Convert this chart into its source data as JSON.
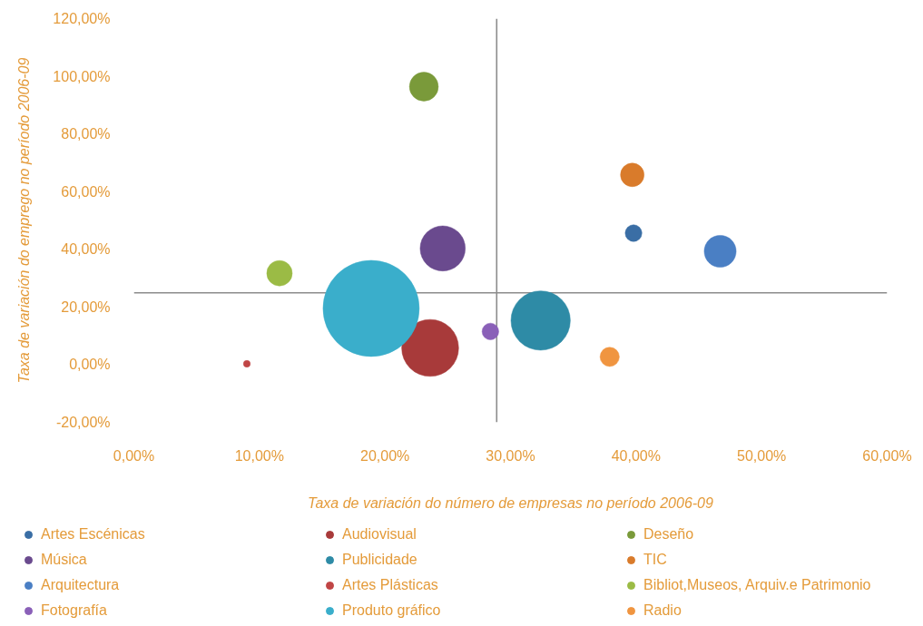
{
  "chart_data": {
    "type": "bubble",
    "xlabel": "Taxa de variación do número de empresas no período 2006-09",
    "ylabel": "Taxa de variación do emprego no período 2006-09",
    "xlim": [
      0,
      60
    ],
    "xticks": [
      {
        "value": 0,
        "label": "0,00%"
      },
      {
        "value": 10,
        "label": "10,00%"
      },
      {
        "value": 20,
        "label": "20,00%"
      },
      {
        "value": 30,
        "label": "30,00%"
      },
      {
        "value": 40,
        "label": "40,00%"
      },
      {
        "value": 50,
        "label": "50,00%"
      },
      {
        "value": 60,
        "label": "60,00%"
      }
    ],
    "ylim": [
      -20,
      120
    ],
    "yticks": [
      {
        "value": -20,
        "label": "-20,00%"
      },
      {
        "value": 0,
        "label": "0,00%"
      },
      {
        "value": 20,
        "label": "20,00%"
      },
      {
        "value": 40,
        "label": "40,00%"
      },
      {
        "value": 60,
        "label": "60,00%"
      },
      {
        "value": 80,
        "label": "80,00%"
      },
      {
        "value": 100,
        "label": "100,00%"
      },
      {
        "value": 120,
        "label": "120,00%"
      }
    ],
    "grid": false,
    "legend": "bottom",
    "marker": "circle",
    "ref_lines": [
      {
        "axis": "x",
        "value": 28.9,
        "color": "#8c8c8c"
      },
      {
        "axis": "y",
        "value": 24.9,
        "color": "#8c8c8c"
      }
    ],
    "series": [
      {
        "name": "Artes Escénicas",
        "color": "#3a6ea5",
        "x": [
          39.8
        ],
        "values": [
          45.6
        ],
        "sizes": [
          0.03
        ]
      },
      {
        "name": "Audiovisual",
        "color": "#a83a3a",
        "x": [
          23.6
        ],
        "values": [
          5.8
        ],
        "sizes": [
          0.35
        ]
      },
      {
        "name": "Deseño",
        "color": "#7a9a3a",
        "x": [
          23.1
        ],
        "values": [
          96.4
        ],
        "sizes": [
          0.09
        ]
      },
      {
        "name": "Música",
        "color": "#6a4a8e",
        "x": [
          24.6
        ],
        "values": [
          40.3
        ],
        "sizes": [
          0.22
        ]
      },
      {
        "name": "Publicidade",
        "color": "#2e8ba6",
        "x": [
          32.4
        ],
        "values": [
          15.3
        ],
        "sizes": [
          0.38
        ]
      },
      {
        "name": "TIC",
        "color": "#d97b2b",
        "x": [
          39.7
        ],
        "values": [
          65.8
        ],
        "sizes": [
          0.06
        ]
      },
      {
        "name": "Arquitectura",
        "color": "#4a7fc4",
        "x": [
          46.7
        ],
        "values": [
          39.3
        ],
        "sizes": [
          0.11
        ]
      },
      {
        "name": "Artes Plásticas",
        "color": "#c04545",
        "x": [
          9.0
        ],
        "values": [
          0.3
        ],
        "sizes": [
          0.005
        ]
      },
      {
        "name": "Bibliot,Museos, Arquiv.e Patrimonio",
        "color": "#9bbb45",
        "x": [
          11.6
        ],
        "values": [
          31.7
        ],
        "sizes": [
          0.07
        ]
      },
      {
        "name": "Fotografía",
        "color": "#8a60b8",
        "x": [
          28.4
        ],
        "values": [
          11.5
        ],
        "sizes": [
          0.03
        ]
      },
      {
        "name": "Produto gráfico",
        "color": "#3aaecb",
        "x": [
          18.9
        ],
        "values": [
          19.5
        ],
        "sizes": [
          1
        ]
      },
      {
        "name": "Radio",
        "color": "#f09540",
        "x": [
          37.9
        ],
        "values": [
          2.7
        ],
        "sizes": [
          0.04
        ]
      }
    ]
  }
}
